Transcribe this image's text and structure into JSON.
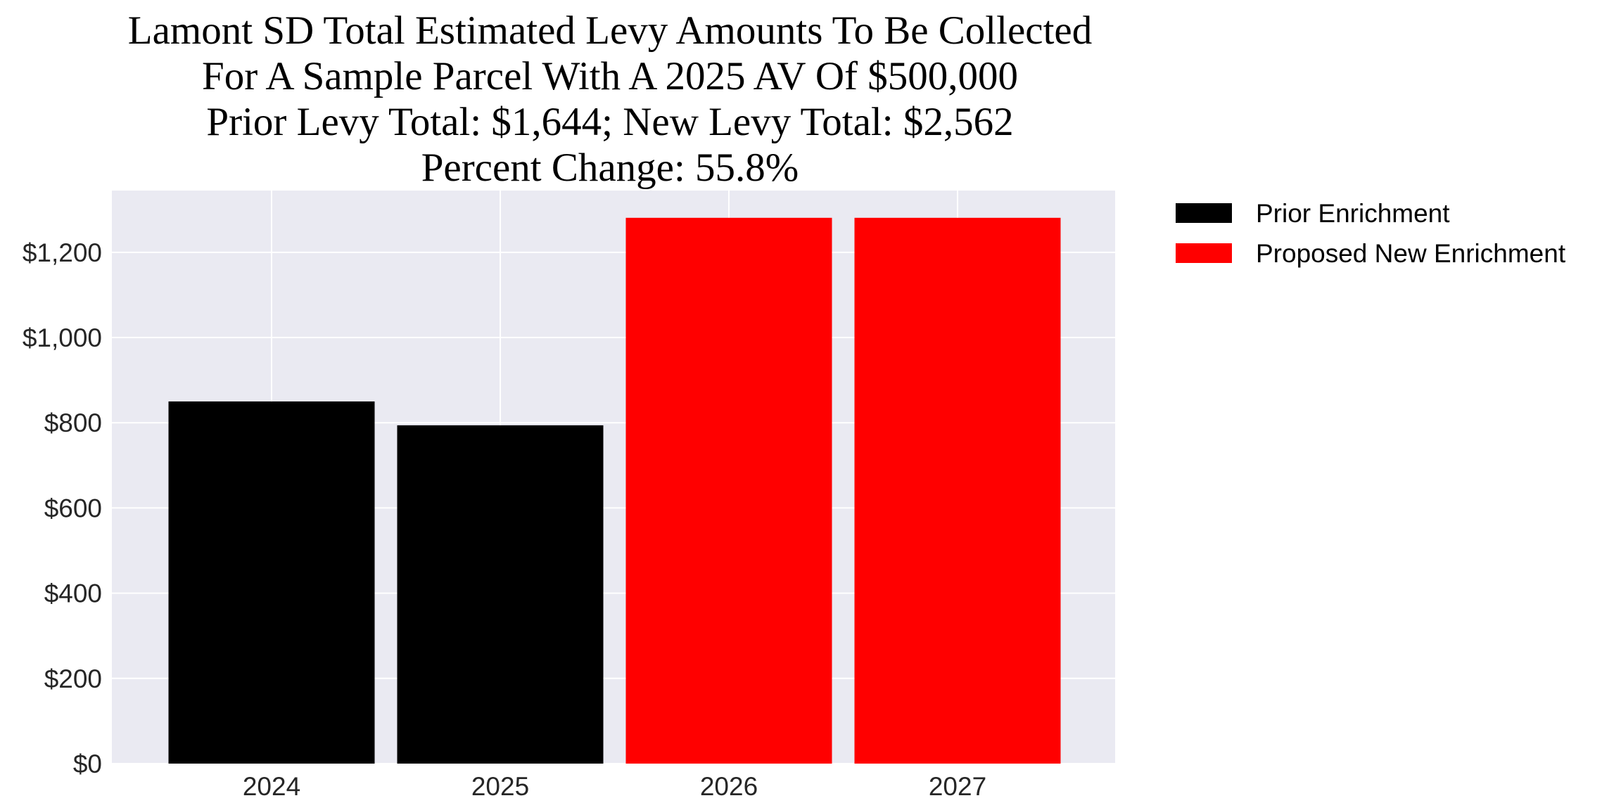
{
  "chart_data": {
    "type": "bar",
    "title_lines": [
      "Lamont SD Total Estimated Levy Amounts To Be Collected",
      "For A Sample Parcel With A 2025 AV Of $500,000",
      "Prior Levy Total:  $1,644; New Levy Total: $2,562",
      "Percent Change: 55.8%"
    ],
    "categories": [
      "2024",
      "2025",
      "2026",
      "2027"
    ],
    "series": [
      {
        "name": "Prior Enrichment",
        "color": "#000000",
        "values": [
          850,
          794,
          null,
          null
        ]
      },
      {
        "name": "Proposed New Enrichment",
        "color": "#ff0000",
        "values": [
          null,
          null,
          1281,
          1281
        ]
      }
    ],
    "xlabel": "",
    "ylabel": "",
    "ylim": [
      0,
      1345
    ],
    "yticks": [
      0,
      200,
      400,
      600,
      800,
      1000,
      1200
    ],
    "ytick_labels": [
      "$0",
      "$200",
      "$400",
      "$600",
      "$800",
      "$1,000",
      "$1,200"
    ],
    "grid": true,
    "legend_position": "outside-top-right",
    "background_color": "#eaeaf2",
    "grid_color": "#ffffff"
  }
}
